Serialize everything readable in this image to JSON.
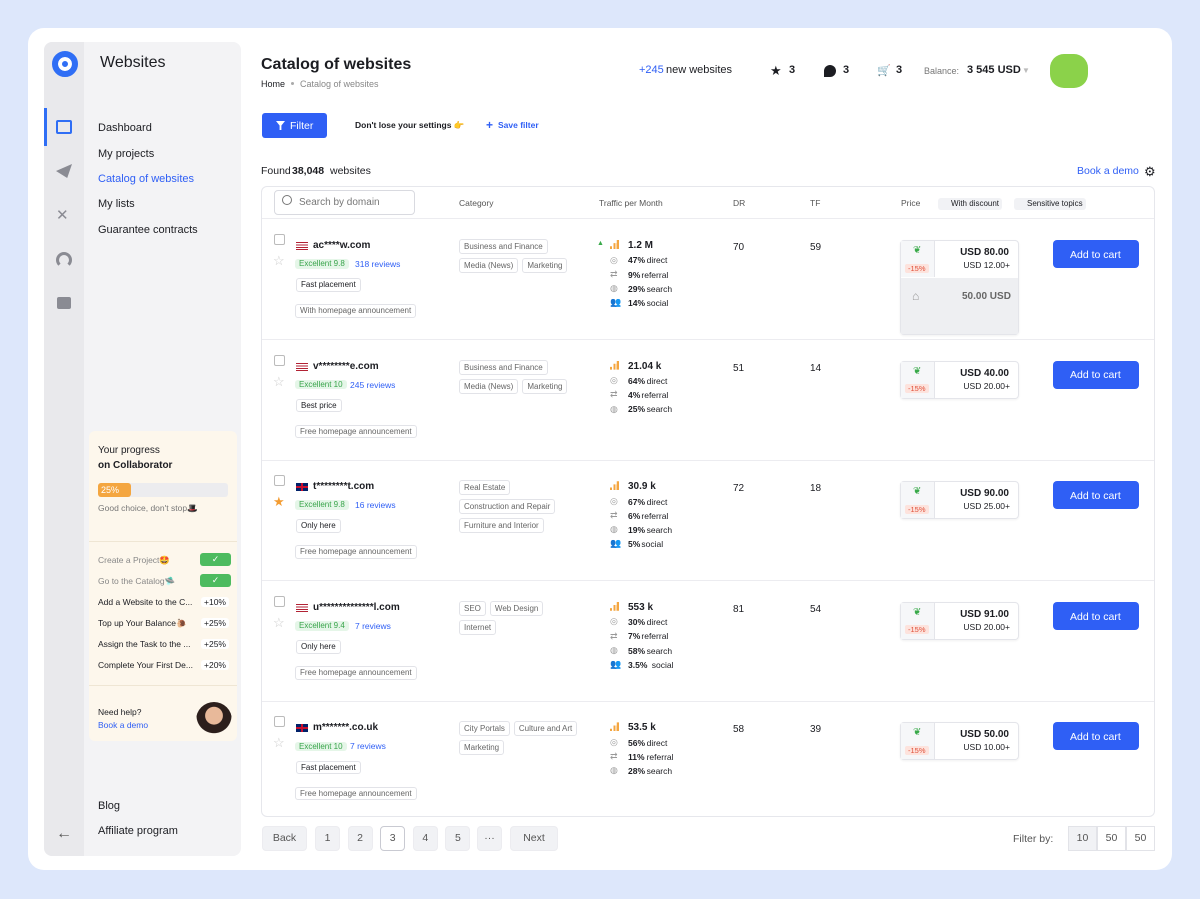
{
  "sidebar": {
    "title": "Websites",
    "nav": [
      "Dashboard",
      "My projects",
      "Catalog of websites",
      "My lists",
      "Guarantee contracts"
    ],
    "progress": {
      "title": "Your progress",
      "subtitle": "on Collaborator",
      "percent": "25%",
      "note": "Good choice, don't stop🎩",
      "tasks": [
        {
          "label": "Create a Project🤩",
          "done": true
        },
        {
          "label": "Go to the Catalog🛸",
          "done": true
        },
        {
          "label": "Add a Website to the C...",
          "bonus": "+10%"
        },
        {
          "label": "Top up Your Balance🐌",
          "bonus": "+25%"
        },
        {
          "label": "Assign the Task to the ...",
          "bonus": "+25%"
        },
        {
          "label": "Complete Your First De...",
          "bonus": "+20%"
        }
      ]
    },
    "help": {
      "title": "Need help?",
      "link": "Book a demo"
    },
    "footer": [
      "Blog",
      "Affiliate program"
    ]
  },
  "header": {
    "title": "Catalog of websites",
    "breadcrumb": [
      "Home",
      "Catalog of websites"
    ],
    "new_count": "+245",
    "new_label": "new websites",
    "favorites": "3",
    "messages": "3",
    "cart": "3",
    "balance_label": "Balance:",
    "balance": "3 545 USD"
  },
  "toolbar": {
    "filter": "Filter",
    "hint": "Don't lose your settings 👉",
    "save": "Save filter",
    "found_prefix": "Found",
    "found_count": "38,048",
    "found_suffix": "websites",
    "demo": "Book a demo"
  },
  "table": {
    "search_placeholder": "Search by domain",
    "columns": {
      "category": "Category",
      "traffic": "Traffic per Month",
      "dr": "DR",
      "tf": "TF",
      "price": "Price",
      "discount": "With discount",
      "sensitive": "Sensitive topics"
    },
    "rows": [
      {
        "flag": "us",
        "domain": "ac****w.com",
        "rating": "Excellent 9.8",
        "reviews": "318 reviews",
        "badge": "Fast placement",
        "announcement": "With homepage announcement",
        "categories": [
          "Business and Finance",
          "Media (News)",
          "Marketing"
        ],
        "traffic": "1.2 M",
        "trend": "up",
        "breakdown": [
          {
            "share": "47%",
            "source": "direct"
          },
          {
            "share": "9%",
            "source": "referral"
          },
          {
            "share": "29%",
            "source": "search"
          },
          {
            "share": "14%",
            "source": "social"
          }
        ],
        "dr": "70",
        "tf": "59",
        "price": "80.00 USD",
        "extra": "+12.00 USD",
        "discount": "-15%",
        "homepage_price": "50.00 USD",
        "button": "Add to cart"
      },
      {
        "flag": "us",
        "domain": "v********e.com",
        "rating": "Excellent 10",
        "reviews": "245 reviews",
        "badge": "Best price",
        "announcement": "Free homepage announcement",
        "categories": [
          "Business and Finance",
          "Media (News)",
          "Marketing"
        ],
        "traffic": "21.04 k",
        "breakdown": [
          {
            "share": "64%",
            "source": "direct"
          },
          {
            "share": "4%",
            "source": "referral"
          },
          {
            "share": "25%",
            "source": "search"
          }
        ],
        "dr": "51",
        "tf": "14",
        "price": "40.00 USD",
        "extra": "+20.00 USD",
        "discount": "-15%",
        "button": "Add to cart"
      },
      {
        "flag": "uk",
        "starred": true,
        "domain": "t********t.com",
        "rating": "Excellent 9.8",
        "reviews": "16 reviews",
        "badge": "Only here",
        "announcement": "Free homepage announcement",
        "categories": [
          "Real Estate",
          "Construction and Repair",
          "Furniture and Interior"
        ],
        "traffic": "30.9 k",
        "breakdown": [
          {
            "share": "67%",
            "source": "direct"
          },
          {
            "share": "6%",
            "source": "referral"
          },
          {
            "share": "19%",
            "source": "search"
          },
          {
            "share": "5%",
            "source": "social"
          }
        ],
        "dr": "72",
        "tf": "18",
        "price": "90.00 USD",
        "extra": "+25.00 USD",
        "discount": "-15%",
        "button": "Add to cart"
      },
      {
        "flag": "us",
        "domain": "u**************l.com",
        "rating": "Excellent 9.4",
        "reviews": "7 reviews",
        "badge": "Only here",
        "announcement": "Free homepage announcement",
        "categories": [
          "SEO",
          "Web Design",
          "Internet"
        ],
        "traffic": "553 k",
        "breakdown": [
          {
            "share": "30%",
            "source": "direct"
          },
          {
            "share": "7%",
            "source": "referral"
          },
          {
            "share": "58%",
            "source": "search"
          },
          {
            "share": "3.5%",
            "source": "social"
          }
        ],
        "dr": "81",
        "tf": "54",
        "price": "91.00 USD",
        "extra": "+20.00 USD",
        "discount": "-15%",
        "button": "Add to cart"
      },
      {
        "flag": "uk",
        "domain": "m*******.co.uk",
        "rating": "Excellent 10",
        "reviews": "7 reviews",
        "badge": "Fast placement",
        "announcement": "Free homepage announcement",
        "categories": [
          "City Portals",
          "Culture and Art",
          "Marketing"
        ],
        "traffic": "53.5 k",
        "breakdown": [
          {
            "share": "56%",
            "source": "direct"
          },
          {
            "share": "11%",
            "source": "referral"
          },
          {
            "share": "28%",
            "source": "search"
          }
        ],
        "dr": "58",
        "tf": "39",
        "price": "50.00 USD",
        "extra": "+10.00 USD",
        "discount": "-15%",
        "button": "Add to cart"
      }
    ]
  },
  "pagination": {
    "back": "Back",
    "pages": [
      "1",
      "2",
      "3",
      "4",
      "5"
    ],
    "current": "3",
    "more": "···",
    "next": "Next",
    "filter_label": "Filter by:",
    "sizes": [
      "10",
      "50",
      "50"
    ]
  }
}
